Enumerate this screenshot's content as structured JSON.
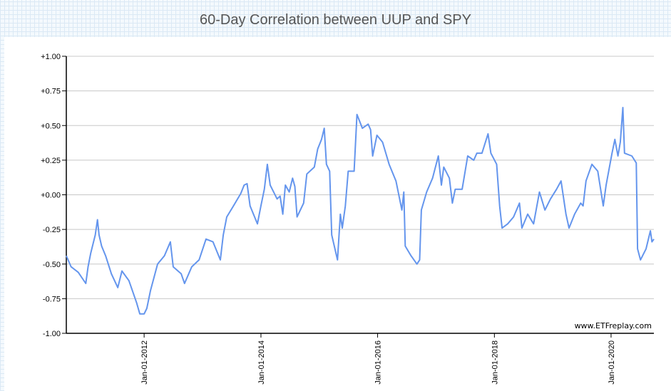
{
  "chart_data": {
    "type": "line",
    "title": "60-Day Correlation between UUP and SPY",
    "xlabel": "",
    "ylabel": "",
    "ylim": [
      -1.0,
      1.0
    ],
    "xlim": [
      "2010-09-01",
      "2020-09-25"
    ],
    "grid": "horizontal",
    "line_color": "#6495ed",
    "y_ticks": [
      {
        "value": 1.0,
        "label": "+1.00"
      },
      {
        "value": 0.75,
        "label": "+0.75"
      },
      {
        "value": 0.5,
        "label": "+0.50"
      },
      {
        "value": 0.25,
        "label": "+0.25"
      },
      {
        "value": 0.0,
        "label": "+0.00"
      },
      {
        "value": -0.25,
        "label": "-0.25"
      },
      {
        "value": -0.5,
        "label": "-0.50"
      },
      {
        "value": -0.75,
        "label": "-0.75"
      },
      {
        "value": -1.0,
        "label": "-1.00"
      }
    ],
    "x_ticks": [
      {
        "date": "2012-01-01",
        "label": "Jan-01-2012"
      },
      {
        "date": "2014-01-01",
        "label": "Jan-01-2014"
      },
      {
        "date": "2016-01-01",
        "label": "Jan-01-2016"
      },
      {
        "date": "2018-01-01",
        "label": "Jan-01-2018"
      },
      {
        "date": "2020-01-01",
        "label": "Jan-01-2020"
      }
    ],
    "annotation": "www.ETFreplay.com",
    "series": [
      {
        "points": [
          [
            "2010-09-01",
            -0.44
          ],
          [
            "2010-10-01",
            -0.52
          ],
          [
            "2010-11-15",
            -0.56
          ],
          [
            "2011-01-01",
            -0.64
          ],
          [
            "2011-01-15",
            -0.52
          ],
          [
            "2011-02-01",
            -0.42
          ],
          [
            "2011-03-01",
            -0.29
          ],
          [
            "2011-03-15",
            -0.18
          ],
          [
            "2011-03-25",
            -0.29
          ],
          [
            "2011-04-10",
            -0.37
          ],
          [
            "2011-05-05",
            -0.44
          ],
          [
            "2011-06-10",
            -0.57
          ],
          [
            "2011-07-20",
            -0.67
          ],
          [
            "2011-08-15",
            -0.55
          ],
          [
            "2011-09-28",
            -0.62
          ],
          [
            "2011-11-15",
            -0.78
          ],
          [
            "2011-12-05",
            -0.86
          ],
          [
            "2012-01-01",
            -0.86
          ],
          [
            "2012-01-18",
            -0.82
          ],
          [
            "2012-02-10",
            -0.69
          ],
          [
            "2012-03-25",
            -0.5
          ],
          [
            "2012-05-07",
            -0.44
          ],
          [
            "2012-06-13",
            -0.34
          ],
          [
            "2012-07-01",
            -0.52
          ],
          [
            "2012-08-20",
            -0.57
          ],
          [
            "2012-09-10",
            -0.64
          ],
          [
            "2012-10-25",
            -0.52
          ],
          [
            "2012-12-10",
            -0.47
          ],
          [
            "2013-01-22",
            -0.32
          ],
          [
            "2013-03-07",
            -0.34
          ],
          [
            "2013-04-22",
            -0.47
          ],
          [
            "2013-05-10",
            -0.29
          ],
          [
            "2013-06-01",
            -0.16
          ],
          [
            "2013-07-13",
            -0.08
          ],
          [
            "2013-08-28",
            0.01
          ],
          [
            "2013-09-18",
            0.07
          ],
          [
            "2013-10-06",
            0.08
          ],
          [
            "2013-10-25",
            -0.08
          ],
          [
            "2013-12-10",
            -0.21
          ],
          [
            "2014-01-01",
            -0.08
          ],
          [
            "2014-01-22",
            0.04
          ],
          [
            "2014-02-10",
            0.22
          ],
          [
            "2014-02-28",
            0.07
          ],
          [
            "2014-04-12",
            -0.03
          ],
          [
            "2014-05-01",
            -0.01
          ],
          [
            "2014-05-18",
            -0.14
          ],
          [
            "2014-06-03",
            0.07
          ],
          [
            "2014-06-27",
            0.02
          ],
          [
            "2014-07-18",
            0.12
          ],
          [
            "2014-08-01",
            0.06
          ],
          [
            "2014-08-15",
            -0.16
          ],
          [
            "2014-09-25",
            -0.06
          ],
          [
            "2014-10-15",
            0.15
          ],
          [
            "2014-12-01",
            0.2
          ],
          [
            "2014-12-22",
            0.33
          ],
          [
            "2015-01-15",
            0.4
          ],
          [
            "2015-02-01",
            0.48
          ],
          [
            "2015-02-15",
            0.22
          ],
          [
            "2015-03-07",
            0.17
          ],
          [
            "2015-03-20",
            -0.29
          ],
          [
            "2015-04-25",
            -0.47
          ],
          [
            "2015-05-13",
            -0.14
          ],
          [
            "2015-05-25",
            -0.24
          ],
          [
            "2015-06-13",
            -0.08
          ],
          [
            "2015-07-01",
            0.17
          ],
          [
            "2015-08-07",
            0.17
          ],
          [
            "2015-08-25",
            0.58
          ],
          [
            "2015-09-28",
            0.48
          ],
          [
            "2015-11-03",
            0.51
          ],
          [
            "2015-11-18",
            0.47
          ],
          [
            "2015-12-01",
            0.28
          ],
          [
            "2015-12-28",
            0.43
          ],
          [
            "2016-02-01",
            0.38
          ],
          [
            "2016-03-13",
            0.22
          ],
          [
            "2016-04-25",
            0.1
          ],
          [
            "2016-06-01",
            -0.11
          ],
          [
            "2016-06-13",
            0.02
          ],
          [
            "2016-06-22",
            -0.37
          ],
          [
            "2016-07-28",
            -0.44
          ],
          [
            "2016-09-03",
            -0.5
          ],
          [
            "2016-09-20",
            -0.47
          ],
          [
            "2016-10-01",
            -0.11
          ],
          [
            "2016-11-03",
            0.02
          ],
          [
            "2016-12-10",
            0.12
          ],
          [
            "2017-01-15",
            0.28
          ],
          [
            "2017-02-03",
            0.07
          ],
          [
            "2017-02-18",
            0.2
          ],
          [
            "2017-03-25",
            0.12
          ],
          [
            "2017-04-13",
            -0.06
          ],
          [
            "2017-05-01",
            0.04
          ],
          [
            "2017-06-13",
            0.04
          ],
          [
            "2017-07-18",
            0.28
          ],
          [
            "2017-08-25",
            0.25
          ],
          [
            "2017-09-13",
            0.3
          ],
          [
            "2017-10-15",
            0.3
          ],
          [
            "2017-11-22",
            0.44
          ],
          [
            "2017-12-10",
            0.3
          ],
          [
            "2018-01-15",
            0.22
          ],
          [
            "2018-02-03",
            -0.08
          ],
          [
            "2018-02-18",
            -0.24
          ],
          [
            "2018-03-25",
            -0.21
          ],
          [
            "2018-05-01",
            -0.16
          ],
          [
            "2018-06-07",
            -0.06
          ],
          [
            "2018-06-22",
            -0.24
          ],
          [
            "2018-07-28",
            -0.14
          ],
          [
            "2018-09-03",
            -0.21
          ],
          [
            "2018-10-10",
            0.02
          ],
          [
            "2018-11-13",
            -0.11
          ],
          [
            "2018-12-18",
            -0.03
          ],
          [
            "2019-01-25",
            0.04
          ],
          [
            "2019-02-22",
            0.1
          ],
          [
            "2019-03-25",
            -0.14
          ],
          [
            "2019-04-13",
            -0.24
          ],
          [
            "2019-05-18",
            -0.14
          ],
          [
            "2019-06-25",
            -0.06
          ],
          [
            "2019-07-10",
            -0.08
          ],
          [
            "2019-07-28",
            0.1
          ],
          [
            "2019-09-03",
            0.22
          ],
          [
            "2019-10-10",
            0.17
          ],
          [
            "2019-11-13",
            -0.08
          ],
          [
            "2019-12-01",
            0.07
          ],
          [
            "2020-01-07",
            0.3
          ],
          [
            "2020-01-25",
            0.4
          ],
          [
            "2020-02-13",
            0.28
          ],
          [
            "2020-02-28",
            0.38
          ],
          [
            "2020-03-15",
            0.63
          ],
          [
            "2020-03-25",
            0.3
          ],
          [
            "2020-05-10",
            0.28
          ],
          [
            "2020-06-07",
            0.23
          ],
          [
            "2020-06-15",
            -0.39
          ],
          [
            "2020-07-03",
            -0.47
          ],
          [
            "2020-08-07",
            -0.39
          ],
          [
            "2020-09-03",
            -0.26
          ],
          [
            "2020-09-13",
            -0.34
          ],
          [
            "2020-09-25",
            -0.32
          ]
        ]
      }
    ]
  }
}
